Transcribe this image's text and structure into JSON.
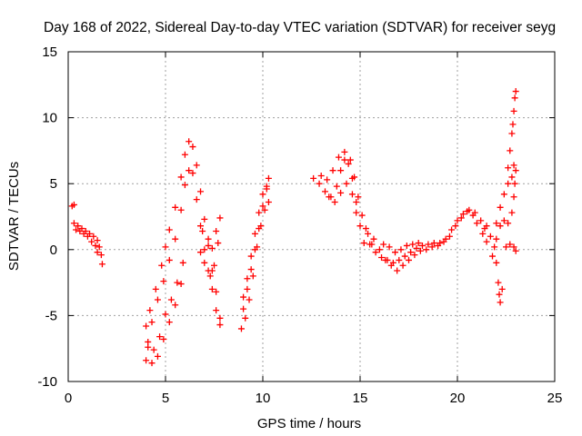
{
  "chart_data": {
    "type": "scatter",
    "title": "Day 168 of 2022, Sidereal Day-to-day VTEC variation (SDTVAR) for receiver seyg",
    "xlabel": "GPS time / hours",
    "ylabel": "SDTVAR / TECUs",
    "xlim": [
      0,
      25
    ],
    "ylim": [
      -10,
      15
    ],
    "xticks": [
      0,
      5,
      10,
      15,
      20,
      25
    ],
    "yticks": [
      -10,
      -5,
      0,
      5,
      10,
      15
    ],
    "grid": true,
    "marker": "+",
    "color": "#ff0000",
    "series": [
      {
        "name": "SDTVAR",
        "points": [
          [
            0.2,
            3.3
          ],
          [
            0.3,
            3.4
          ],
          [
            0.3,
            2.0
          ],
          [
            0.5,
            1.8
          ],
          [
            0.7,
            1.6
          ],
          [
            0.9,
            1.4
          ],
          [
            1.1,
            1.2
          ],
          [
            1.3,
            1.0
          ],
          [
            1.5,
            0.7
          ],
          [
            1.6,
            0.2
          ],
          [
            1.7,
            -0.4
          ],
          [
            1.75,
            -1.1
          ],
          [
            0.4,
            1.5
          ],
          [
            0.6,
            1.4
          ],
          [
            0.8,
            1.2
          ],
          [
            1.0,
            1.0
          ],
          [
            1.2,
            0.6
          ],
          [
            1.4,
            0.3
          ],
          [
            1.5,
            -0.2
          ],
          [
            4.0,
            -5.8
          ],
          [
            4.2,
            -4.6
          ],
          [
            4.5,
            -3.0
          ],
          [
            4.8,
            -1.2
          ],
          [
            5.0,
            0.2
          ],
          [
            5.2,
            1.5
          ],
          [
            5.5,
            3.2
          ],
          [
            5.8,
            5.5
          ],
          [
            6.0,
            7.2
          ],
          [
            6.2,
            8.2
          ],
          [
            6.4,
            7.8
          ],
          [
            6.6,
            6.4
          ],
          [
            6.8,
            4.4
          ],
          [
            7.0,
            2.3
          ],
          [
            7.2,
            0.3
          ],
          [
            7.4,
            -1.6
          ],
          [
            7.6,
            -3.2
          ],
          [
            7.8,
            -5.2
          ],
          [
            4.1,
            -7.0
          ],
          [
            4.3,
            -5.5
          ],
          [
            4.6,
            -3.8
          ],
          [
            4.9,
            -2.4
          ],
          [
            5.2,
            -0.8
          ],
          [
            5.5,
            0.8
          ],
          [
            5.8,
            3.0
          ],
          [
            6.0,
            4.9
          ],
          [
            6.2,
            6.0
          ],
          [
            6.4,
            5.8
          ],
          [
            6.6,
            3.8
          ],
          [
            6.8,
            1.8
          ],
          [
            7.0,
            0.0
          ],
          [
            7.2,
            -1.6
          ],
          [
            7.4,
            -3.0
          ],
          [
            7.6,
            -4.6
          ],
          [
            7.8,
            -5.7
          ],
          [
            4.0,
            -8.4
          ],
          [
            4.3,
            -8.6
          ],
          [
            4.6,
            -8.1
          ],
          [
            4.9,
            -6.8
          ],
          [
            5.2,
            -5.5
          ],
          [
            5.5,
            -4.2
          ],
          [
            5.8,
            -2.6
          ],
          [
            4.1,
            -7.4
          ],
          [
            4.4,
            -7.6
          ],
          [
            4.7,
            -6.6
          ],
          [
            5.0,
            -4.9
          ],
          [
            5.3,
            -3.8
          ],
          [
            5.6,
            -2.5
          ],
          [
            5.9,
            -1.0
          ],
          [
            6.9,
            1.4
          ],
          [
            7.2,
            0.8
          ],
          [
            7.4,
            0.1
          ],
          [
            7.6,
            1.4
          ],
          [
            7.8,
            2.4
          ],
          [
            6.8,
            -0.2
          ],
          [
            7.0,
            -1.0
          ],
          [
            7.3,
            -2.0
          ],
          [
            7.5,
            -1.2
          ],
          [
            7.7,
            0.5
          ],
          [
            8.9,
            -6.0
          ],
          [
            9.0,
            -4.5
          ],
          [
            9.2,
            -3.0
          ],
          [
            9.4,
            -1.5
          ],
          [
            9.6,
            0.0
          ],
          [
            9.8,
            1.6
          ],
          [
            10.0,
            3.3
          ],
          [
            10.2,
            4.8
          ],
          [
            10.3,
            5.4
          ],
          [
            9.0,
            -3.6
          ],
          [
            9.2,
            -2.2
          ],
          [
            9.4,
            -0.5
          ],
          [
            9.6,
            1.2
          ],
          [
            9.8,
            2.8
          ],
          [
            10.0,
            4.2
          ],
          [
            10.2,
            4.6
          ],
          [
            9.1,
            -5.2
          ],
          [
            9.3,
            -3.8
          ],
          [
            9.5,
            -2.0
          ],
          [
            9.7,
            0.2
          ],
          [
            9.9,
            1.8
          ],
          [
            10.1,
            3.0
          ],
          [
            10.3,
            3.6
          ],
          [
            12.6,
            5.4
          ],
          [
            12.9,
            5.0
          ],
          [
            13.2,
            4.4
          ],
          [
            13.5,
            4.0
          ],
          [
            13.8,
            4.8
          ],
          [
            14.0,
            6.0
          ],
          [
            14.2,
            6.8
          ],
          [
            14.4,
            6.5
          ],
          [
            14.6,
            5.4
          ],
          [
            14.8,
            3.6
          ],
          [
            15.0,
            1.8
          ],
          [
            15.2,
            0.5
          ],
          [
            15.4,
            1.2
          ],
          [
            15.6,
            0.4
          ],
          [
            13.0,
            5.6
          ],
          [
            13.3,
            5.3
          ],
          [
            13.6,
            6.0
          ],
          [
            13.9,
            7.0
          ],
          [
            14.2,
            7.4
          ],
          [
            14.5,
            6.8
          ],
          [
            14.7,
            5.5
          ],
          [
            14.9,
            4.0
          ],
          [
            15.1,
            2.6
          ],
          [
            15.3,
            1.6
          ],
          [
            13.4,
            4.0
          ],
          [
            13.7,
            3.6
          ],
          [
            14.0,
            4.3
          ],
          [
            14.3,
            5.0
          ],
          [
            14.6,
            4.2
          ],
          [
            14.8,
            2.8
          ],
          [
            15.5,
            0.4
          ],
          [
            15.8,
            -0.2
          ],
          [
            16.1,
            -0.6
          ],
          [
            16.4,
            -0.8
          ],
          [
            16.7,
            -1.0
          ],
          [
            17.0,
            -0.8
          ],
          [
            17.3,
            -0.5
          ],
          [
            17.6,
            -0.2
          ],
          [
            17.9,
            0.1
          ],
          [
            18.2,
            0.3
          ],
          [
            18.5,
            0.4
          ],
          [
            18.8,
            0.5
          ],
          [
            19.1,
            0.5
          ],
          [
            19.4,
            0.8
          ],
          [
            19.7,
            1.5
          ],
          [
            20.0,
            2.2
          ],
          [
            20.3,
            2.7
          ],
          [
            20.5,
            2.9
          ],
          [
            20.8,
            2.6
          ],
          [
            21.0,
            2.0
          ],
          [
            21.3,
            1.2
          ],
          [
            21.5,
            0.6
          ],
          [
            15.7,
            0.8
          ],
          [
            16.0,
            0.0
          ],
          [
            16.3,
            -0.8
          ],
          [
            16.6,
            -1.2
          ],
          [
            16.9,
            -1.6
          ],
          [
            17.2,
            -1.2
          ],
          [
            17.5,
            -0.8
          ],
          [
            17.8,
            -0.4
          ],
          [
            18.1,
            -0.1
          ],
          [
            18.4,
            0.0
          ],
          [
            18.7,
            0.2
          ],
          [
            19.0,
            0.3
          ],
          [
            19.3,
            0.6
          ],
          [
            19.6,
            1.0
          ],
          [
            19.9,
            1.8
          ],
          [
            20.2,
            2.4
          ],
          [
            20.6,
            3.0
          ],
          [
            20.9,
            2.8
          ],
          [
            21.2,
            2.2
          ],
          [
            21.4,
            1.6
          ],
          [
            16.2,
            0.4
          ],
          [
            16.5,
            0.2
          ],
          [
            16.8,
            -0.2
          ],
          [
            17.1,
            0.0
          ],
          [
            17.4,
            0.3
          ],
          [
            17.7,
            0.4
          ],
          [
            18.0,
            0.5
          ],
          [
            21.5,
            1.8
          ],
          [
            21.7,
            1.0
          ],
          [
            21.9,
            0.2
          ],
          [
            22.0,
            -1.0
          ],
          [
            22.1,
            -2.5
          ],
          [
            22.15,
            -3.4
          ],
          [
            22.2,
            -4.0
          ],
          [
            22.3,
            -3.0
          ],
          [
            21.8,
            -0.5
          ],
          [
            22.0,
            0.8
          ],
          [
            22.2,
            1.8
          ],
          [
            22.4,
            2.2
          ],
          [
            22.6,
            2.0
          ],
          [
            22.8,
            2.8
          ],
          [
            22.9,
            4.0
          ],
          [
            22.0,
            2.0
          ],
          [
            22.2,
            3.2
          ],
          [
            22.4,
            4.2
          ],
          [
            22.6,
            5.0
          ],
          [
            22.8,
            5.5
          ],
          [
            23.0,
            6.0
          ],
          [
            22.6,
            6.2
          ],
          [
            22.7,
            7.5
          ],
          [
            22.8,
            8.8
          ],
          [
            22.85,
            9.5
          ],
          [
            22.9,
            10.5
          ],
          [
            22.95,
            11.5
          ],
          [
            23.0,
            12.0
          ],
          [
            22.9,
            6.4
          ],
          [
            22.95,
            5.0
          ],
          [
            22.5,
            0.2
          ],
          [
            22.7,
            0.4
          ],
          [
            22.9,
            0.2
          ],
          [
            23.0,
            -0.1
          ]
        ]
      }
    ]
  }
}
